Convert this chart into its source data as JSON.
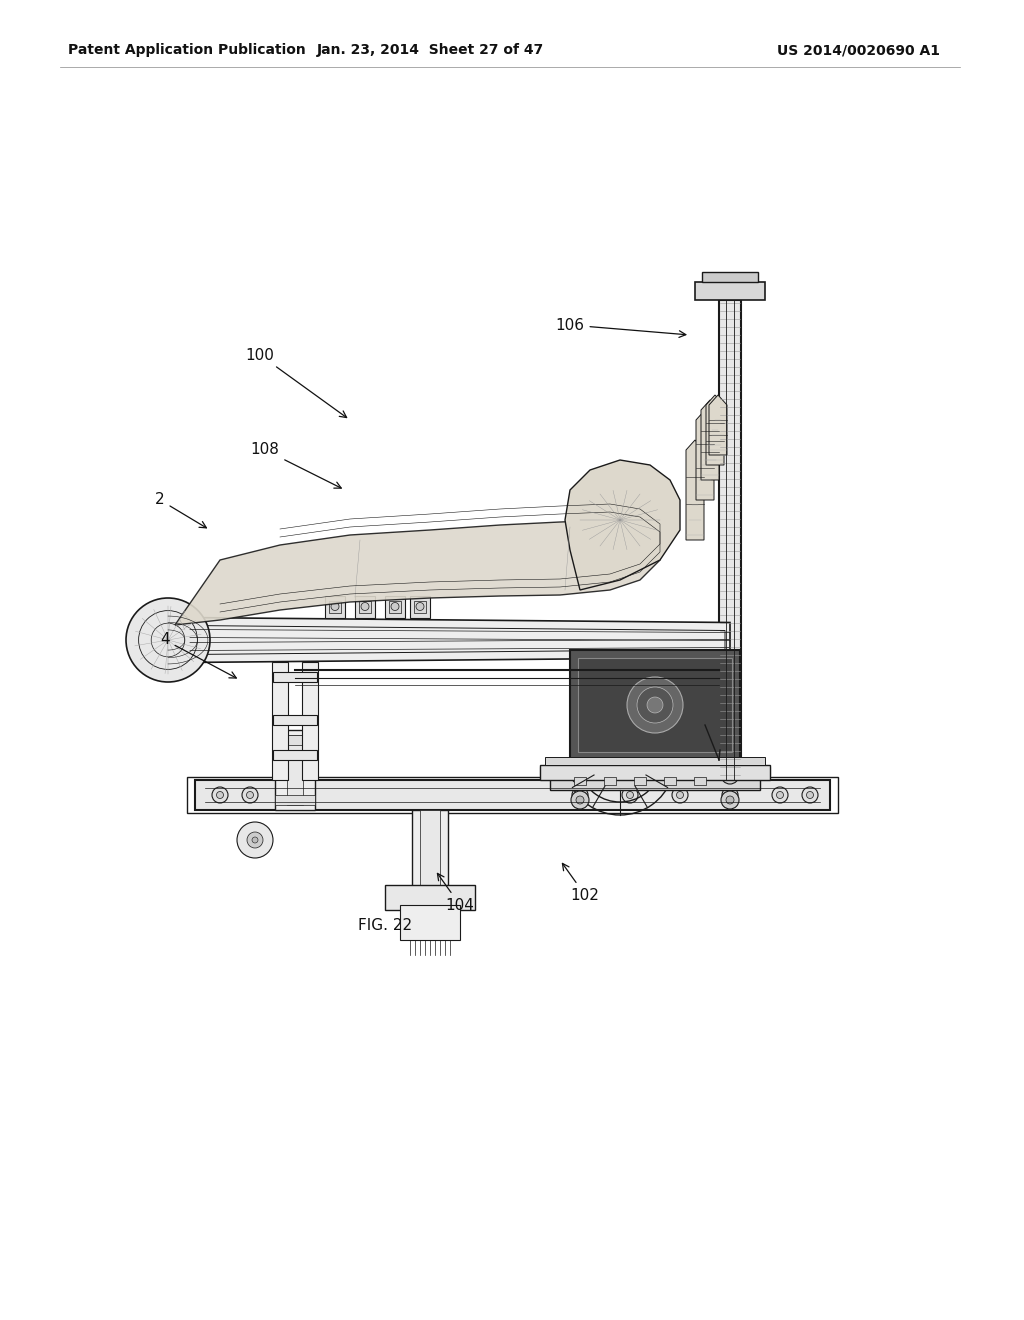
{
  "background_color": "#ffffff",
  "header_left": "Patent Application Publication",
  "header_center": "Jan. 23, 2014  Sheet 27 of 47",
  "header_right": "US 2014/0020690 A1",
  "figure_caption": "FIG. 22",
  "line_color": "#1a1a1a",
  "header_fontsize": 10,
  "label_fontsize": 11,
  "caption_fontsize": 11
}
